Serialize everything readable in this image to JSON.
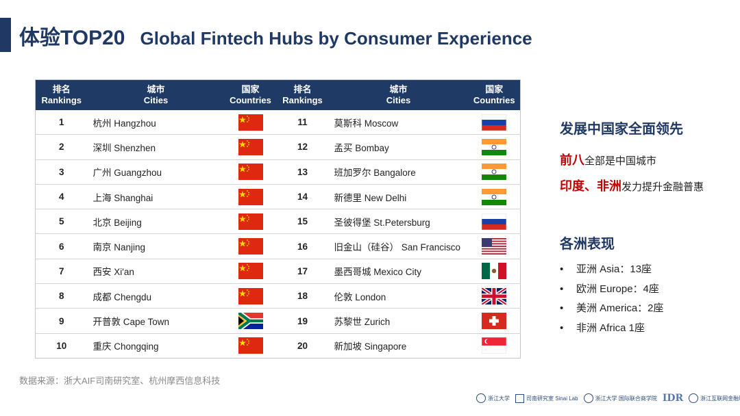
{
  "title": {
    "cn": "体验TOP20",
    "en": "Global Fintech Hubs by Consumer Experience"
  },
  "table": {
    "headers": {
      "rank_cn": "排名",
      "rank_en": "Rankings",
      "city_cn": "城市",
      "city_en": "Cities",
      "country_cn": "国家",
      "country_en": "Countries"
    },
    "rows": [
      {
        "left": {
          "rank": "1",
          "city": "杭州 Hangzhou",
          "flag": "china"
        },
        "right": {
          "rank": "11",
          "city": "莫斯科 Moscow",
          "flag": "russia"
        }
      },
      {
        "left": {
          "rank": "2",
          "city": "深圳 Shenzhen",
          "flag": "china"
        },
        "right": {
          "rank": "12",
          "city": "孟买 Bombay",
          "flag": "india"
        }
      },
      {
        "left": {
          "rank": "3",
          "city": "广州 Guangzhou",
          "flag": "china"
        },
        "right": {
          "rank": "13",
          "city": "班加罗尔 Bangalore",
          "flag": "india"
        }
      },
      {
        "left": {
          "rank": "4",
          "city": "上海 Shanghai",
          "flag": "china"
        },
        "right": {
          "rank": "14",
          "city": "新德里 New Delhi",
          "flag": "india"
        }
      },
      {
        "left": {
          "rank": "5",
          "city": "北京 Beijing",
          "flag": "china"
        },
        "right": {
          "rank": "15",
          "city": "圣彼得堡 St.Petersburg",
          "flag": "russia"
        }
      },
      {
        "left": {
          "rank": "6",
          "city": "南京 Nanjing",
          "flag": "china"
        },
        "right": {
          "rank": "16",
          "city": "旧金山（硅谷） San Francisco",
          "flag": "usa"
        }
      },
      {
        "left": {
          "rank": "7",
          "city": "西安 Xi'an",
          "flag": "china"
        },
        "right": {
          "rank": "17",
          "city": "墨西哥城 Mexico City",
          "flag": "mexico"
        }
      },
      {
        "left": {
          "rank": "8",
          "city": "成都 Chengdu",
          "flag": "china"
        },
        "right": {
          "rank": "18",
          "city": "伦敦 London",
          "flag": "uk"
        }
      },
      {
        "left": {
          "rank": "9",
          "city": "开普敦 Cape Town",
          "flag": "south-africa"
        },
        "right": {
          "rank": "19",
          "city": "苏黎世 Zurich",
          "flag": "switzerland"
        }
      },
      {
        "left": {
          "rank": "10",
          "city": "重庆 Chongqing",
          "flag": "china"
        },
        "right": {
          "rank": "20",
          "city": "新加坡 Singapore",
          "flag": "singapore"
        }
      }
    ]
  },
  "side": {
    "heading1": "发展中国家全面领先",
    "line1_red": "前八",
    "line1_rest": "全部是中国城市",
    "line2_red": "印度、非洲",
    "line2_rest": "发力提升金融普惠",
    "heading2": "各洲表现",
    "continents": [
      "亚洲 Asia：13座",
      "欧洲 Europe：4座",
      "美洲 America：2座",
      "非洲 Africa 1座"
    ],
    "bullet": "•"
  },
  "source": "数据来源：浙大AIF司南研究室、杭州摩西信息科技",
  "logos": [
    "浙江大学",
    "司南研究室 Sinai Lab",
    "浙江大学 国际联合商学院",
    "IDR",
    "浙江互联网金融联合会"
  ],
  "colors": {
    "header_bg": "#203a66",
    "title": "#1f3864",
    "highlight": "#c00000"
  }
}
